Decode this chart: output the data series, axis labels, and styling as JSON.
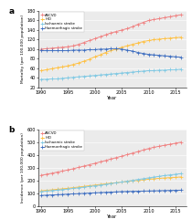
{
  "years": [
    1990,
    1991,
    1992,
    1993,
    1994,
    1995,
    1996,
    1997,
    1998,
    1999,
    2000,
    2001,
    2002,
    2003,
    2004,
    2005,
    2006,
    2007,
    2008,
    2009,
    2010,
    2011,
    2012,
    2013,
    2014,
    2015,
    2016
  ],
  "panel_a": {
    "title": "a",
    "ylabel": "Mortality (per 100,000 population)",
    "ylim": [
      20,
      180
    ],
    "yticks": [
      20,
      40,
      60,
      80,
      100,
      120,
      140,
      160,
      180
    ],
    "ASCVD": [
      100,
      101,
      102,
      103,
      104,
      105,
      107,
      110,
      114,
      118,
      122,
      126,
      130,
      134,
      137,
      140,
      143,
      147,
      152,
      156,
      160,
      162,
      164,
      166,
      168,
      170,
      172
    ],
    "IHD": [
      55,
      57,
      59,
      61,
      63,
      65,
      68,
      71,
      75,
      79,
      84,
      88,
      93,
      97,
      100,
      104,
      107,
      110,
      113,
      116,
      118,
      120,
      121,
      122,
      123,
      124,
      125
    ],
    "Ischaemic_stroke": [
      37,
      37,
      38,
      38,
      39,
      40,
      41,
      42,
      43,
      44,
      45,
      46,
      47,
      48,
      49,
      50,
      51,
      52,
      53,
      54,
      55,
      55,
      56,
      56,
      57,
      57,
      58
    ],
    "Haemorrhagic_stroke": [
      97,
      97,
      97,
      97,
      97,
      97,
      98,
      98,
      98,
      99,
      99,
      100,
      100,
      101,
      101,
      100,
      98,
      96,
      93,
      91,
      89,
      88,
      87,
      86,
      85,
      84,
      83
    ]
  },
  "panel_b": {
    "title": "b",
    "ylabel": "Incidence (per 100,000 population)",
    "ylim": [
      0,
      600
    ],
    "yticks": [
      0,
      100,
      200,
      300,
      400,
      500,
      600
    ],
    "ASCVD": [
      240,
      248,
      256,
      265,
      273,
      282,
      292,
      302,
      313,
      323,
      334,
      345,
      356,
      368,
      379,
      390,
      402,
      414,
      426,
      438,
      450,
      460,
      468,
      476,
      484,
      492,
      500
    ],
    "IHD": [
      118,
      122,
      126,
      130,
      134,
      138,
      143,
      148,
      153,
      158,
      163,
      168,
      173,
      178,
      182,
      187,
      191,
      196,
      200,
      205,
      209,
      213,
      216,
      219,
      222,
      224,
      227
    ],
    "Ischaemic_stroke": [
      112,
      116,
      120,
      124,
      128,
      132,
      137,
      142,
      147,
      152,
      158,
      163,
      169,
      175,
      181,
      187,
      194,
      200,
      207,
      213,
      220,
      226,
      232,
      238,
      243,
      248,
      253
    ],
    "Haemorrhagic_stroke": [
      82,
      84,
      86,
      88,
      90,
      92,
      94,
      96,
      98,
      100,
      102,
      104,
      106,
      108,
      110,
      112,
      113,
      114,
      115,
      116,
      117,
      118,
      119,
      120,
      121,
      122,
      123
    ]
  },
  "colors": {
    "ASCVD": "#f08080",
    "IHD": "#ffc040",
    "Ischaemic_stroke": "#7ec8e3",
    "Haemorrhagic_stroke": "#3a6bbf"
  },
  "legend_labels": {
    "ASCVD": "ASCVD",
    "IHD": "IHD",
    "Ischaemic_stroke": "Ischaemic stroke",
    "Haemorrhagic_stroke": "Haemorrhagic stroke"
  },
  "bg_color": "#ebebeb",
  "xticks": [
    1990,
    1995,
    2000,
    2005,
    2010,
    2015
  ]
}
